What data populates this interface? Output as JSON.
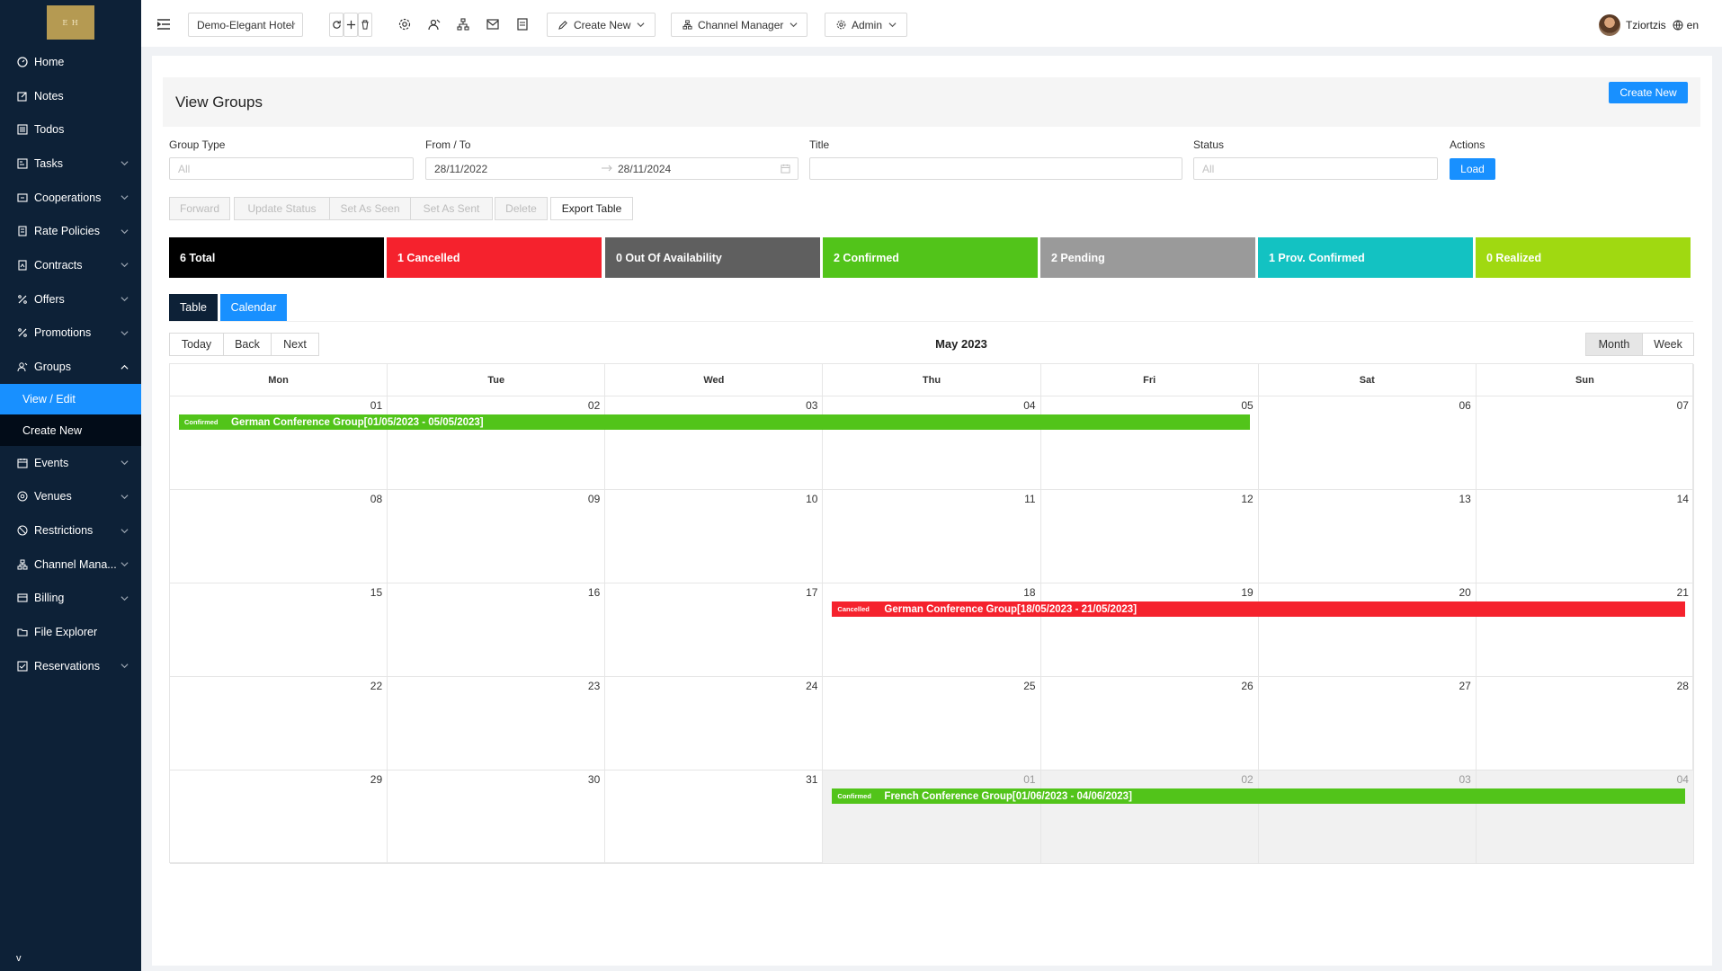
{
  "brand": {
    "logo_text": "E H"
  },
  "sidebar": {
    "items": [
      {
        "label": "Home",
        "icon": "dashboard-icon",
        "has_children": false
      },
      {
        "label": "Notes",
        "icon": "edit-icon",
        "has_children": false
      },
      {
        "label": "Todos",
        "icon": "list-icon",
        "has_children": false
      },
      {
        "label": "Tasks",
        "icon": "tasks-icon",
        "has_children": true
      },
      {
        "label": "Cooperations",
        "icon": "cooperation-icon",
        "has_children": true
      },
      {
        "label": "Rate Policies",
        "icon": "policy-icon",
        "has_children": true
      },
      {
        "label": "Contracts",
        "icon": "contract-icon",
        "has_children": true
      },
      {
        "label": "Offers",
        "icon": "percent-icon",
        "has_children": true
      },
      {
        "label": "Promotions",
        "icon": "percent-icon",
        "has_children": true
      },
      {
        "label": "Groups",
        "icon": "group-icon",
        "has_children": true,
        "expanded": true
      },
      {
        "label": "Events",
        "icon": "calendar-icon",
        "has_children": true
      },
      {
        "label": "Venues",
        "icon": "location-icon",
        "has_children": true
      },
      {
        "label": "Restrictions",
        "icon": "stop-icon",
        "has_children": true
      },
      {
        "label": "Channel Mana...",
        "icon": "channel-icon",
        "has_children": true
      },
      {
        "label": "Billing",
        "icon": "billing-icon",
        "has_children": true
      },
      {
        "label": "File Explorer",
        "icon": "folder-icon",
        "has_children": false
      },
      {
        "label": "Reservations",
        "icon": "reservation-icon",
        "has_children": true
      }
    ],
    "groups_sub": [
      {
        "label": "View / Edit",
        "active": true
      },
      {
        "label": "Create New",
        "active": false
      }
    ],
    "collapse_label": "v"
  },
  "topbar": {
    "hotel_select": "Demo-Elegant Hotel",
    "create_new": "Create New",
    "channel_manager": "Channel Manager",
    "admin": "Admin",
    "user_name": "Tziortzis",
    "language": "en"
  },
  "page": {
    "title": "View Groups",
    "create_new_button": "Create New"
  },
  "filters": {
    "group_type_label": "Group Type",
    "group_type_placeholder": "All",
    "from_to_label": "From / To",
    "from_date": "28/11/2022",
    "to_date": "28/11/2024",
    "title_label": "Title",
    "title_value": "",
    "status_label": "Status",
    "status_placeholder": "All",
    "actions_label": "Actions",
    "load_button": "Load"
  },
  "actions": {
    "forward": "Forward",
    "update_status": "Update Status",
    "set_as_seen": "Set As Seen",
    "set_as_sent": "Set As Sent",
    "delete": "Delete",
    "export_table": "Export Table"
  },
  "stats": [
    {
      "label": "6 Total",
      "color": "#000000"
    },
    {
      "label": "1 Cancelled",
      "color": "#f5222d"
    },
    {
      "label": "0 Out Of Availability",
      "color": "#5f5f5f"
    },
    {
      "label": "2 Confirmed",
      "color": "#52c41a"
    },
    {
      "label": "2 Pending",
      "color": "#9a9a9a"
    },
    {
      "label": "1 Prov. Confirmed",
      "color": "#13c2c2"
    },
    {
      "label": "0 Realized",
      "color": "#a0d911"
    }
  ],
  "view_toggle": {
    "table": "Table",
    "calendar": "Calendar"
  },
  "calendar": {
    "today": "Today",
    "back": "Back",
    "next": "Next",
    "title": "May 2023",
    "month": "Month",
    "week": "Week",
    "days_of_week": [
      "Mon",
      "Tue",
      "Wed",
      "Thu",
      "Fri",
      "Sat",
      "Sun"
    ],
    "weeks": [
      [
        "01",
        "02",
        "03",
        "04",
        "05",
        "06",
        "07"
      ],
      [
        "08",
        "09",
        "10",
        "11",
        "12",
        "13",
        "14"
      ],
      [
        "15",
        "16",
        "17",
        "18",
        "19",
        "20",
        "21"
      ],
      [
        "22",
        "23",
        "24",
        "25",
        "26",
        "27",
        "28"
      ],
      [
        "29",
        "30",
        "31",
        "01",
        "02",
        "03",
        "04"
      ]
    ],
    "events": [
      {
        "status": "Confirmed",
        "title": "German Conference Group[01/05/2023 - 05/05/2023]",
        "color": "#52c41a"
      },
      {
        "status": "Cancelled",
        "title": "German Conference Group[18/05/2023 - 21/05/2023]",
        "color": "#f5222d"
      },
      {
        "status": "Confirmed",
        "title": "French Conference Group[01/06/2023 - 04/06/2023]",
        "color": "#52c41a"
      }
    ]
  }
}
